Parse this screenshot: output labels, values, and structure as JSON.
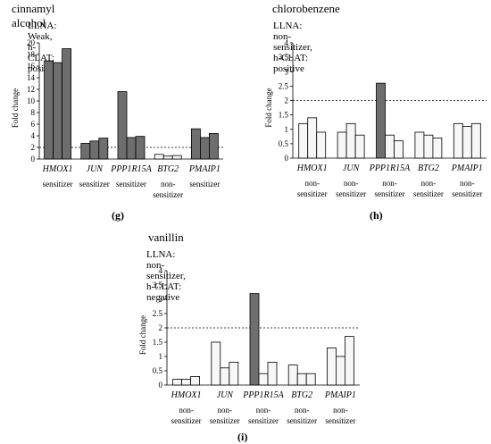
{
  "chart_data": [
    {
      "type": "bar",
      "panel_label": "(g)",
      "title": "cinnamyl alcohol",
      "subtitle": "LLNA: Weak, h-CLAT: positive",
      "ylabel": "Fold change",
      "ylim": [
        0,
        20
      ],
      "yticks": [
        "0",
        "2",
        "4",
        "6",
        "8",
        "10",
        "12",
        "14",
        "16",
        "18",
        "20"
      ],
      "threshold": 2,
      "categories": [
        "HMOX1",
        "JUN",
        "PPP1R15A",
        "BTG2",
        "PMAIP1"
      ],
      "class_labels": [
        "sensitizer",
        "sensitizer",
        "sensitizer",
        "non-\nsensitizer",
        "sensitizer"
      ],
      "values": [
        [
          16.9,
          16.6,
          19.0
        ],
        [
          2.7,
          3.1,
          3.6
        ],
        [
          11.6,
          3.7,
          3.9
        ],
        [
          0.8,
          0.5,
          0.6
        ],
        [
          5.2,
          3.7,
          4.4
        ]
      ],
      "highlighted": [
        true,
        true,
        true,
        false,
        true
      ],
      "colors": {
        "highlight": "#6e6e6e",
        "normal": "#f7f7f7"
      }
    },
    {
      "type": "bar",
      "panel_label": "(h)",
      "title": "chlorobenzene",
      "subtitle": "LLNA: non-sensitizer, h-CLAT: positive",
      "ylabel": "Fold change",
      "ylim": [
        0,
        4
      ],
      "yticks": [
        "0",
        "0.5",
        "1",
        "1.5",
        "2",
        "2.5",
        "3",
        "3.5",
        "4"
      ],
      "threshold": 2,
      "categories": [
        "HMOX1",
        "JUN",
        "PPP1R15A",
        "BTG2",
        "PMAIP1"
      ],
      "class_labels": [
        "non-\nsensitizer",
        "non-\nsensitizer",
        "non-\nsensitizer",
        "non-\nsensitizer",
        "non-\nsensitizer"
      ],
      "values": [
        [
          1.2,
          1.4,
          0.9
        ],
        [
          0.9,
          1.2,
          0.8
        ],
        [
          2.6,
          0.8,
          0.6
        ],
        [
          0.9,
          0.8,
          0.7
        ],
        [
          1.2,
          1.1,
          1.2
        ]
      ],
      "highlighted_bars": [
        [
          false,
          false,
          false
        ],
        [
          false,
          false,
          false
        ],
        [
          true,
          false,
          false
        ],
        [
          false,
          false,
          false
        ],
        [
          false,
          false,
          false
        ]
      ],
      "colors": {
        "highlight": "#6e6e6e",
        "normal": "#f7f7f7"
      }
    },
    {
      "type": "bar",
      "panel_label": "(i)",
      "title": "vanillin",
      "subtitle": "LLNA: non-sensitizer, h-CLAT: negative",
      "ylabel": "Fold change",
      "ylim": [
        0,
        4
      ],
      "yticks": [
        "0",
        "0.5",
        "1",
        "1.5",
        "2",
        "2.5",
        "3",
        "3.5",
        "4"
      ],
      "threshold": 2,
      "categories": [
        "HMOX1",
        "JUN",
        "PPP1R15A",
        "BTG2",
        "PMAIP1"
      ],
      "class_labels": [
        "non-\nsensitizer",
        "non-\nsensitizer",
        "non-\nsensitizer",
        "non-\nsensitizer",
        "non-\nsensitizer"
      ],
      "values": [
        [
          0.2,
          0.2,
          0.3
        ],
        [
          1.5,
          0.6,
          0.8
        ],
        [
          3.2,
          0.4,
          0.8
        ],
        [
          0.7,
          0.4,
          0.4
        ],
        [
          1.3,
          1.0,
          1.7
        ]
      ],
      "highlighted_bars": [
        [
          false,
          false,
          false
        ],
        [
          false,
          false,
          false
        ],
        [
          true,
          false,
          false
        ],
        [
          false,
          false,
          false
        ],
        [
          false,
          false,
          false
        ]
      ],
      "colors": {
        "highlight": "#6e6e6e",
        "normal": "#f7f7f7"
      }
    }
  ]
}
